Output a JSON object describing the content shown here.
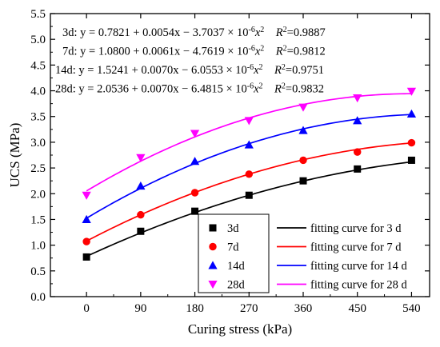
{
  "chart_data": {
    "type": "scatter",
    "xlabel": "Curing stress (kPa)",
    "ylabel": "UCS (MPa)",
    "xlim": [
      -60,
      570
    ],
    "ylim": [
      0.0,
      5.5
    ],
    "x_ticks": [
      0,
      90,
      180,
      270,
      360,
      450,
      540
    ],
    "y_ticks": [
      0.0,
      0.5,
      1.0,
      1.5,
      2.0,
      2.5,
      3.0,
      3.5,
      4.0,
      4.5,
      5.0,
      5.5
    ],
    "x_tick_labels": [
      "0",
      "90",
      "180",
      "270",
      "360",
      "450",
      "540"
    ],
    "y_tick_labels": [
      "0.0",
      "0.5",
      "1.0",
      "1.5",
      "2.0",
      "2.5",
      "3.0",
      "3.5",
      "4.0",
      "4.5",
      "5.0",
      "5.5"
    ],
    "grid": false,
    "legend_position": "bottom-right",
    "series": [
      {
        "name": "3d",
        "marker": "square",
        "color": "#000000",
        "x": [
          0,
          90,
          180,
          270,
          360,
          450,
          540
        ],
        "y": [
          0.77,
          1.27,
          1.66,
          1.97,
          2.25,
          2.48,
          2.65
        ],
        "fit": {
          "label": "fitting curve for 3 d",
          "a": 0.7821,
          "b": 0.0054,
          "c": -3.7037e-06
        },
        "equation": {
          "prefix": "3d:",
          "body": "y = 0.7821 + 0.0054x − 3.7037 × 10",
          "exp": "-6",
          "tail": "x",
          "sq": "2",
          "r2_label": "R",
          "r2_exp": "2",
          "r2_value": "=0.9887"
        }
      },
      {
        "name": "7d",
        "marker": "circle",
        "color": "#ff0000",
        "x": [
          0,
          90,
          180,
          270,
          360,
          450,
          540
        ],
        "y": [
          1.07,
          1.59,
          2.02,
          2.38,
          2.65,
          2.81,
          2.99
        ],
        "fit": {
          "label": "fitting curve for 7 d",
          "a": 1.08,
          "b": 0.0061,
          "c": -4.7619e-06
        },
        "equation": {
          "prefix": "7d:",
          "body": "y = 1.0800 + 0.0061x − 4.7619 × 10",
          "exp": "-6",
          "tail": "x",
          "sq": "2",
          "r2_label": "R",
          "r2_exp": "2",
          "r2_value": "=0.9812"
        }
      },
      {
        "name": "14d",
        "marker": "triangle-up",
        "color": "#0000ff",
        "x": [
          0,
          90,
          180,
          270,
          360,
          450,
          540
        ],
        "y": [
          1.5,
          2.15,
          2.63,
          2.95,
          3.23,
          3.42,
          3.55
        ],
        "fit": {
          "label": "fitting curve for 14 d",
          "a": 1.5241,
          "b": 0.007,
          "c": -6.0553e-06
        },
        "equation": {
          "prefix": "14d:",
          "body": "y = 1.5241 + 0.0070x − 6.0553 × 10",
          "exp": "-6",
          "tail": "x",
          "sq": "2",
          "r2_label": "R",
          "r2_exp": "2",
          "r2_value": "=0.9751"
        }
      },
      {
        "name": "28d",
        "marker": "triangle-down",
        "color": "#ff00ff",
        "x": [
          0,
          90,
          180,
          270,
          360,
          450,
          540
        ],
        "y": [
          1.97,
          2.7,
          3.17,
          3.42,
          3.68,
          3.86,
          3.99
        ],
        "fit": {
          "label": "fitting curve for 28 d",
          "a": 2.0536,
          "b": 0.007,
          "c": -6.4815e-06
        },
        "equation": {
          "prefix": "28d:",
          "body": "y = 2.0536 + 0.0070x − 6.4815 × 10",
          "exp": "-6",
          "tail": "x",
          "sq": "2",
          "r2_label": "R",
          "r2_exp": "2",
          "r2_value": "=0.9832"
        }
      }
    ]
  }
}
